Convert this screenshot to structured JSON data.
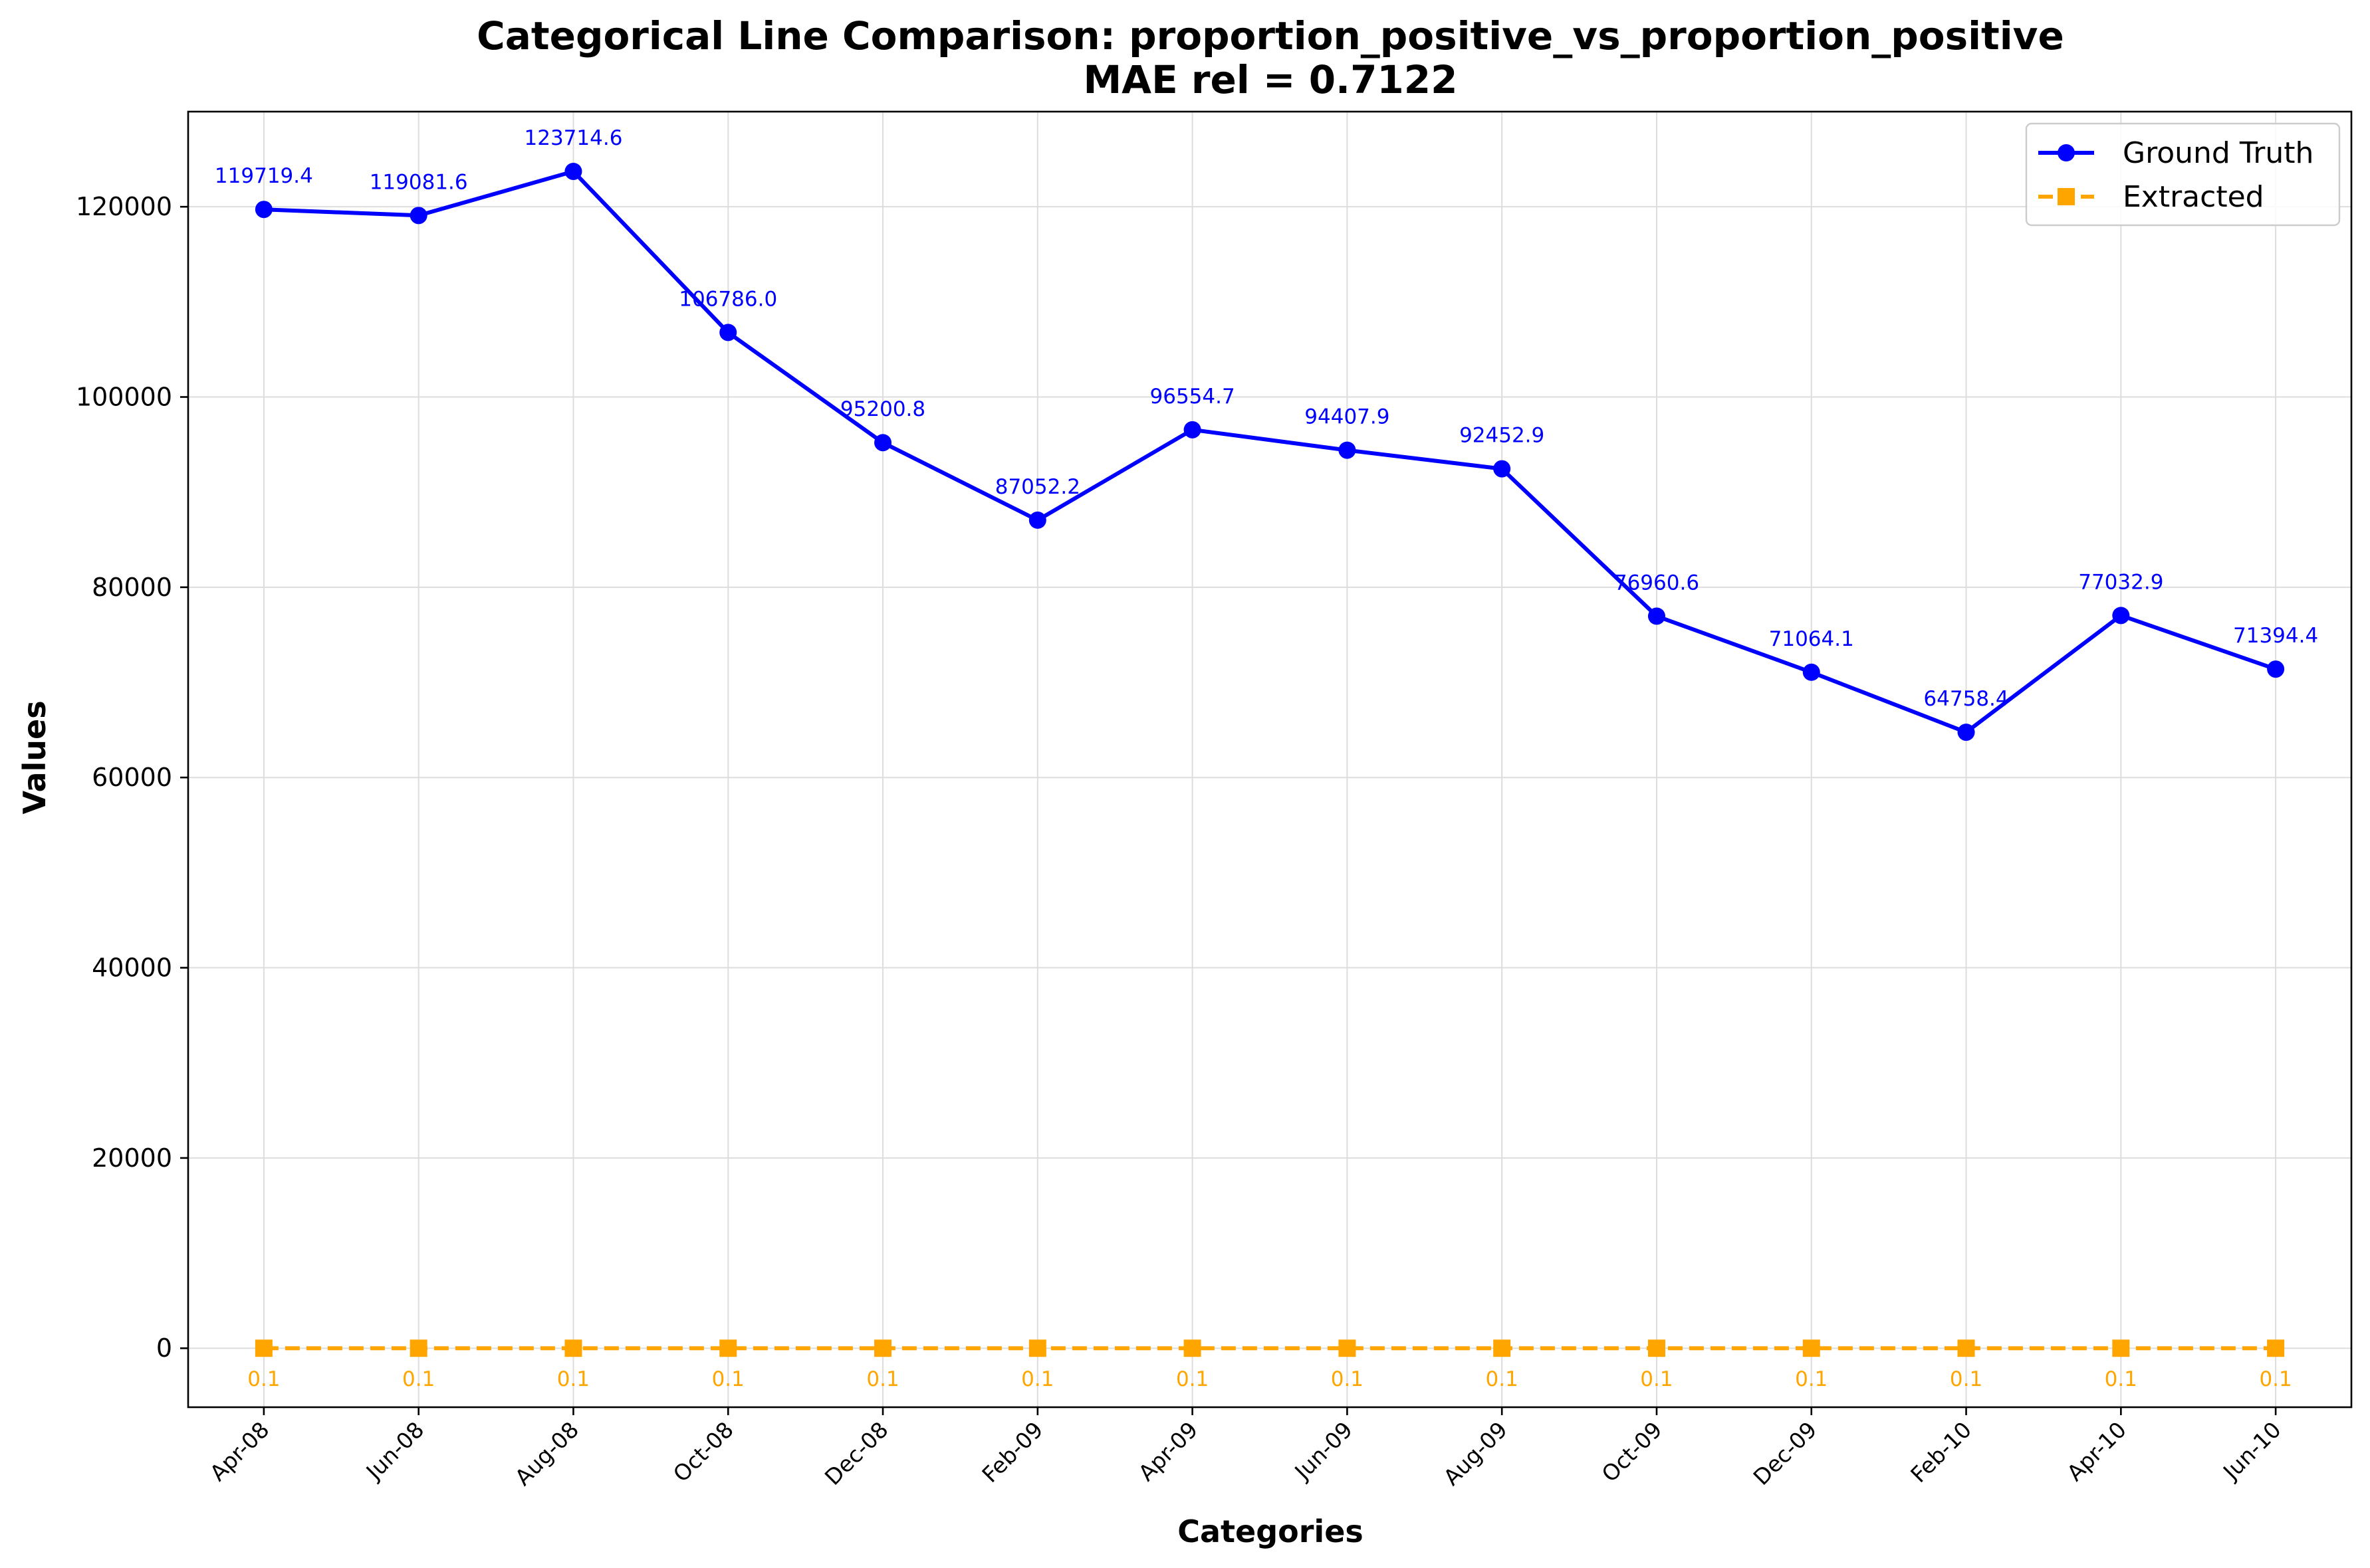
{
  "chart_data": {
    "type": "line",
    "title": "Categorical Line Comparison: proportion_positive_vs_proportion_positive",
    "subtitle": "MAE rel = 0.7122",
    "xlabel": "Categories",
    "ylabel": "Values",
    "categories": [
      "Apr-08",
      "Jun-08",
      "Aug-08",
      "Oct-08",
      "Dec-08",
      "Feb-09",
      "Apr-09",
      "Jun-09",
      "Aug-09",
      "Oct-09",
      "Dec-09",
      "Feb-10",
      "Apr-10",
      "Jun-10"
    ],
    "ylim": [
      -6200,
      130000
    ],
    "yticks": [
      0,
      20000,
      40000,
      60000,
      80000,
      100000,
      120000
    ],
    "grid": true,
    "legend_position": "top-right",
    "series": [
      {
        "name": "Ground Truth",
        "color": "#0000ff",
        "marker": "circle",
        "line_style": "solid",
        "values": [
          119719.4,
          119081.6,
          123714.6,
          106786.0,
          95200.8,
          87052.2,
          96554.7,
          94407.9,
          92452.9,
          76960.6,
          71064.1,
          64758.4,
          77032.9,
          71394.4
        ],
        "labels": [
          "119719.4",
          "119081.6",
          "123714.6",
          "106786.0",
          "95200.8",
          "87052.2",
          "96554.7",
          "94407.9",
          "92452.9",
          "76960.6",
          "71064.1",
          "64758.4",
          "77032.9",
          "71394.4"
        ]
      },
      {
        "name": "Extracted",
        "color": "#ffa500",
        "marker": "square",
        "line_style": "dashed",
        "values": [
          0.1,
          0.1,
          0.1,
          0.1,
          0.1,
          0.1,
          0.1,
          0.1,
          0.1,
          0.1,
          0.1,
          0.1,
          0.1,
          0.1
        ],
        "labels": [
          "0.1",
          "0.1",
          "0.1",
          "0.1",
          "0.1",
          "0.1",
          "0.1",
          "0.1",
          "0.1",
          "0.1",
          "0.1",
          "0.1",
          "0.1",
          "0.1"
        ]
      }
    ]
  }
}
